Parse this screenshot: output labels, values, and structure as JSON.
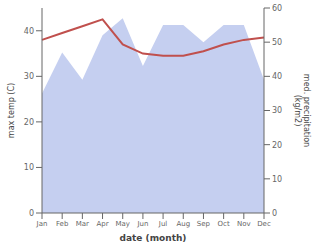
{
  "chart_data": {
    "type": "line",
    "categories": [
      "Jan",
      "Feb",
      "Mar",
      "Apr",
      "May",
      "Jun",
      "Jul",
      "Aug",
      "Sep",
      "Oct",
      "Nov",
      "Dec"
    ],
    "series": [
      {
        "type": "area",
        "color": "#c5cff0",
        "axis": "y2",
        "values": [
          35,
          47,
          39,
          52,
          57,
          43,
          55,
          55,
          50,
          55,
          55,
          39
        ]
      },
      {
        "type": "line",
        "color": "#c0504d",
        "values": [
          38,
          39.5,
          41,
          42.5,
          37,
          35,
          34.5,
          34.5,
          35.5,
          37,
          38,
          38.5
        ]
      }
    ],
    "xlabel": "date (month)",
    "ylabel": "max temp (C)",
    "y2label": "med. precipitation\n(kg/m2)",
    "ylim": [
      0,
      45
    ],
    "yticks": [
      0,
      10,
      20,
      30,
      40
    ],
    "y2lim": [
      0,
      60
    ],
    "y2ticks": [
      0,
      10,
      20,
      30,
      40,
      50,
      60
    ],
    "grid": false
  }
}
